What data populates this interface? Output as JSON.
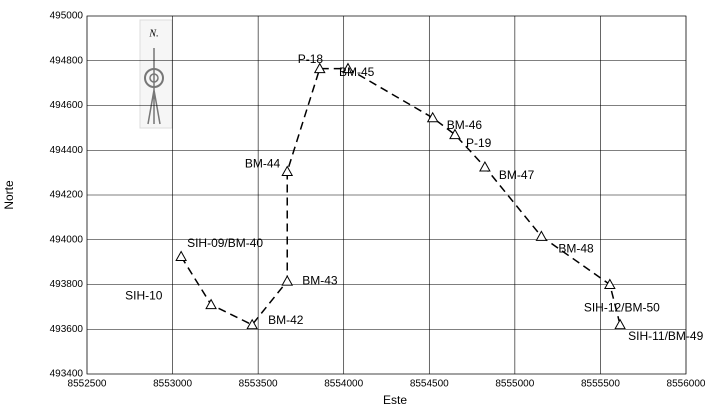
{
  "chart_data": {
    "type": "line",
    "x_label": "Este",
    "y_label": "Norte",
    "compass_label": "N.",
    "xlim": [
      8552500,
      8556000
    ],
    "xticks": [
      8552500,
      8553000,
      8553500,
      8554000,
      8554500,
      8555000,
      8555500,
      8556000
    ],
    "ylim": [
      493400,
      495000
    ],
    "yticks": [
      493400,
      493600,
      493800,
      494000,
      494200,
      494400,
      494600,
      494800,
      495000
    ],
    "grid": true,
    "series": [
      {
        "color": "#000000",
        "x": [
          8553050,
          8553225,
          8553465,
          8553670,
          8553670,
          8553860,
          8554025,
          8554520,
          8554650,
          8554825,
          8555155,
          8555555,
          8555615
        ],
        "values": [
          493925,
          493710,
          493620,
          493815,
          494305,
          494765,
          494765,
          494545,
          494470,
          494325,
          494015,
          493800,
          493620
        ],
        "point_labels": [
          "SIH-10",
          "SIH-09/BM-40",
          "BM-42",
          "BM-43",
          "BM-44",
          "P-18",
          "BM-45",
          "BM-46",
          "P-19",
          "BM-47",
          "BM-48",
          "SIH-12/BM-50",
          "SIH-11/BM-49"
        ]
      }
    ]
  }
}
